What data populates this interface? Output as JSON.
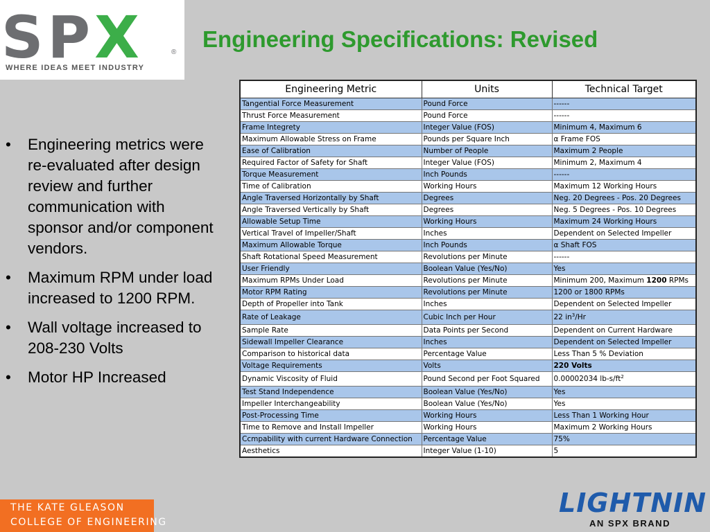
{
  "logo": {
    "letters_left": "SP",
    "letters_x": "X",
    "registered": "®",
    "tagline": "WHERE IDEAS MEET INDUSTRY"
  },
  "title": "Engineering Specifications: Revised",
  "bullets": [
    "Engineering metrics were re-evaluated after design review and further communication with sponsor and/or component vendors.",
    "Maximum RPM under load increased to 1200 RPM.",
    "Wall voltage increased to 208-230 Volts",
    "Motor HP Increased"
  ],
  "bullet_symbol": "•",
  "table": {
    "headers": [
      "Engineering Metric",
      "Units",
      "Technical Target"
    ],
    "rows": [
      {
        "metric": "Tangential Force Measurement",
        "units": "Pound Force",
        "target": "------",
        "shade": "blue"
      },
      {
        "metric": "Thrust Force Measurement",
        "units": "Pound Force",
        "target": "------",
        "shade": "white"
      },
      {
        "metric": "Frame Integrety",
        "units": "Integer Value (FOS)",
        "target": "Minimum 4, Maximum 6",
        "shade": "blue"
      },
      {
        "metric": "Maximum Allowable Stress on Frame",
        "units": "Pounds per Square Inch",
        "target": "α Frame FOS",
        "shade": "white"
      },
      {
        "metric": "Ease of Calibration",
        "units": "Number of People",
        "target": "Maximum 2 People",
        "shade": "blue"
      },
      {
        "metric": "Required Factor of Safety for Shaft",
        "units": "Integer Value (FOS)",
        "target": "Minimum 2, Maximum 4",
        "shade": "white"
      },
      {
        "metric": "Torque Measurement",
        "units": "Inch Pounds",
        "target": "------",
        "shade": "blue"
      },
      {
        "metric": "Time of Calibration",
        "units": "Working Hours",
        "target": "Maximum 12 Working Hours",
        "shade": "white"
      },
      {
        "metric": "Angle Traversed Horizontally by Shaft",
        "units": "Degrees",
        "target": "Neg. 20 Degrees - Pos. 20 Degrees",
        "shade": "blue"
      },
      {
        "metric": "Angle Traversed Vertically by Shaft",
        "units": "Degrees",
        "target": "Neg. 5 Degrees - Pos. 10 Degrees",
        "shade": "white"
      },
      {
        "metric": "Allowable Setup Time",
        "units": "Working Hours",
        "target": "Maximum 24 Working Hours",
        "shade": "blue"
      },
      {
        "metric": "Vertical Travel of Impeller/Shaft",
        "units": "Inches",
        "target": "Dependent on Selected Impeller",
        "shade": "white"
      },
      {
        "metric": "Maximum Allowable Torque",
        "units": "Inch Pounds",
        "target": "α Shaft FOS",
        "shade": "blue"
      },
      {
        "metric": "Shaft Rotational Speed Measurement",
        "units": "Revolutions per Minute",
        "target": "------",
        "shade": "white"
      },
      {
        "metric": "User Friendly",
        "units": "Boolean Value (Yes/No)",
        "target": "Yes",
        "shade": "blue"
      },
      {
        "metric": "Maximum RPMs Under Load",
        "units": "Revolutions per Minute",
        "target_pre": "Minimum 200, Maximum ",
        "target_bold": "1200",
        "target_post": " RPMs",
        "shade": "white"
      },
      {
        "metric": "Motor RPM Rating",
        "units": "Revolutions per Minute",
        "target": "1200 or 1800 RPMs",
        "shade": "blue"
      },
      {
        "metric": "Depth of Propeller into Tank",
        "units": "Inches",
        "target": "Dependent on Selected Impeller",
        "shade": "white"
      },
      {
        "metric": "Rate of Leakage",
        "units": "Cubic Inch per Hour",
        "target_pre": "22 in",
        "target_sup": "3",
        "target_post": "/Hr",
        "shade": "blue",
        "tall": true
      },
      {
        "metric": "Sample Rate",
        "units": "Data Points per Second",
        "target": "Dependent on Current Hardware",
        "shade": "white"
      },
      {
        "metric": "Sidewall Impeller Clearance",
        "units": "Inches",
        "target": "Dependent on Selected Impeller",
        "shade": "blue"
      },
      {
        "metric": "Comparison to historical data",
        "units": "Percentage Value",
        "target": "Less Than 5 % Deviation",
        "shade": "white"
      },
      {
        "metric": "Voltage Requirements",
        "units": "Volts",
        "target_bold": "220 Volts",
        "shade": "blue"
      },
      {
        "metric": "Dynamic Viscosity of Fluid",
        "units": "Pound Second per Foot Squared",
        "target_pre": "0.00002034 lb-s/ft",
        "target_sup": "2",
        "shade": "white",
        "tall": true
      },
      {
        "metric": "Test Stand Independence",
        "units": "Boolean Value (Yes/No)",
        "target": "Yes",
        "shade": "blue"
      },
      {
        "metric": "Impeller Interchangeability",
        "units": "Boolean Value (Yes/No)",
        "target": "Yes",
        "shade": "white"
      },
      {
        "metric": "Post-Processing Time",
        "units": "Working Hours",
        "target": "Less Than 1 Working Hour",
        "shade": "blue"
      },
      {
        "metric": "Time to Remove and Install Impeller",
        "units": "Working Hours",
        "target": "Maximum 2 Working Hours",
        "shade": "white"
      },
      {
        "metric": "Ccmpability with current Hardware Connection",
        "units": "Percentage Value",
        "target": "75%",
        "shade": "blue"
      },
      {
        "metric": "Aesthetics",
        "units": "Integer Value (1-10)",
        "target": "5",
        "shade": "white"
      }
    ]
  },
  "footer_left": {
    "line1": "THE KATE GLEASON",
    "line2": "COLLEGE OF ENGINEERING"
  },
  "footer_right": {
    "word": "LIGHTNIN",
    "brand": "AN SPX BRAND"
  },
  "colors": {
    "title_green": "#2e9a2e",
    "spx_gray": "#6d6e71",
    "spx_green": "#3cae49",
    "row_blue": "#a9c6ea",
    "kgcoe_orange": "#f26f22",
    "lightnin_blue": "#1f5bab",
    "slide_bg": "#c8c8c8"
  }
}
